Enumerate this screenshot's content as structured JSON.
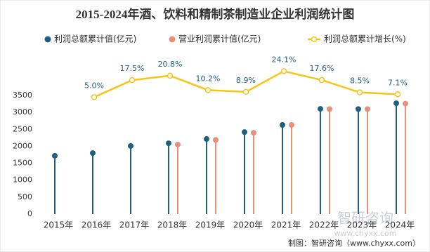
{
  "chart_data": {
    "type": "lollipop-line",
    "title": "2015-2024年酒、饮料和精制茶制造业企业利润统计图",
    "categories": [
      "2015年",
      "2016年",
      "2017年",
      "2018年",
      "2019年",
      "2020年",
      "2021年",
      "2022年",
      "2023年",
      "2024年"
    ],
    "series": [
      {
        "name": "利润总额累计值(亿元)",
        "color": "#1f5f82",
        "values": [
          1720,
          1800,
          2010,
          2090,
          2215,
          2420,
          2630,
          3105,
          3100,
          3270
        ]
      },
      {
        "name": "营业利润累计值(亿元)",
        "color": "#e8917a",
        "values": [
          null,
          null,
          null,
          2050,
          2190,
          2400,
          2630,
          3100,
          3100,
          3260
        ]
      },
      {
        "name": "利润总额累计增长(%)",
        "color": "#f5c518",
        "axis": "y2",
        "values": [
          null,
          5.0,
          17.5,
          20.8,
          10.2,
          8.9,
          24.1,
          17.6,
          8.5,
          7.1
        ],
        "value_labels": [
          null,
          "5.0%",
          "17.5%",
          "20.8%",
          "10.2%",
          "8.9%",
          "24.1%",
          "17.6%",
          "8.5%",
          "7.1%"
        ]
      }
    ],
    "ylim": [
      0,
      3500
    ],
    "yticks": [
      0,
      500,
      1000,
      1500,
      2000,
      2500,
      3000,
      3500
    ],
    "y2lim": [
      -81,
      30
    ],
    "source": "制图：智研咨询（www.chyxx.com）",
    "watermark": "智研咨询",
    "watermark_url": "www.chyxx.com"
  }
}
